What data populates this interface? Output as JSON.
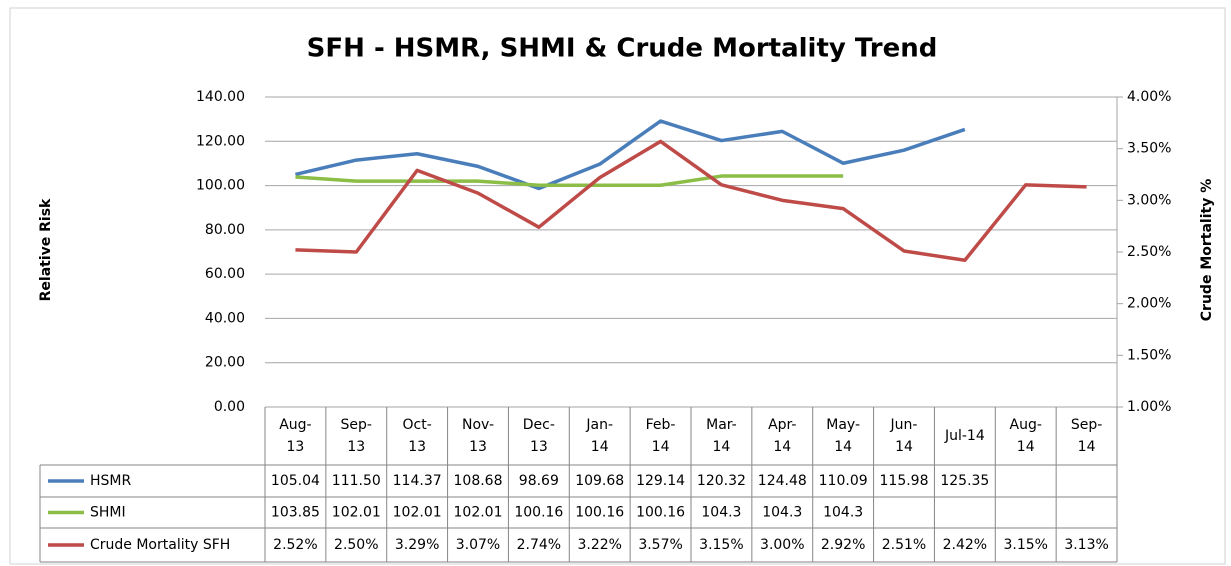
{
  "chart_data": {
    "type": "line",
    "title": "SFH - HSMR, SHMI & Crude Mortality Trend",
    "y_label": "Relative Risk",
    "y2_label": "Crude Mortality %",
    "categories": [
      "Aug-13",
      "Sep-13",
      "Oct-13",
      "Nov-13",
      "Dec-13",
      "Jan-14",
      "Feb-14",
      "Mar-14",
      "Apr-14",
      "May-14",
      "Jun-14",
      "Jul-14",
      "Aug-14",
      "Sep-14"
    ],
    "ylim": [
      0,
      140
    ],
    "yticks": [
      {
        "value": 0,
        "label": "0.00"
      },
      {
        "value": 20,
        "label": "20.00"
      },
      {
        "value": 40,
        "label": "40.00"
      },
      {
        "value": 60,
        "label": "60.00"
      },
      {
        "value": 80,
        "label": "80.00"
      },
      {
        "value": 100,
        "label": "100.00"
      },
      {
        "value": 120,
        "label": "120.00"
      },
      {
        "value": 140,
        "label": "140.00"
      }
    ],
    "y2lim": [
      1,
      4
    ],
    "y2ticks": [
      {
        "value": 1,
        "label": "1.00%"
      },
      {
        "value": 1.5,
        "label": "1.50%"
      },
      {
        "value": 2,
        "label": "2.00%"
      },
      {
        "value": 2.5,
        "label": "2.50%"
      },
      {
        "value": 3,
        "label": "3.00%"
      },
      {
        "value": 3.5,
        "label": "3.50%"
      },
      {
        "value": 4,
        "label": "4.00%"
      }
    ],
    "grid": true,
    "series": [
      {
        "name": "HSMR",
        "color": "#4a7ebb",
        "values": [
          105.04,
          111.5,
          114.37,
          108.68,
          98.69,
          109.68,
          129.14,
          120.32,
          124.48,
          110.09,
          115.98,
          125.35,
          null,
          null
        ],
        "value_labels": [
          "105.04",
          "111.50",
          "114.37",
          "108.68",
          "98.69",
          "109.68",
          "129.14",
          "120.32",
          "124.48",
          "110.09",
          "115.98",
          "125.35",
          null,
          null
        ]
      },
      {
        "name": "SHMI",
        "color": "#8cbe47",
        "values": [
          103.85,
          102.01,
          102.01,
          102.01,
          100.16,
          100.16,
          100.16,
          104.3,
          104.3,
          104.3,
          null,
          null,
          null,
          null
        ],
        "value_labels": [
          "103.85",
          "102.01",
          "102.01",
          "102.01",
          "100.16",
          "100.16",
          "100.16",
          "104.3",
          "104.3",
          "104.3",
          null,
          null,
          null,
          null
        ]
      },
      {
        "name": "Crude Mortality SFH",
        "color": "#be4b48",
        "axis": "y2",
        "values": [
          2.52,
          2.5,
          3.29,
          3.07,
          2.74,
          3.22,
          3.57,
          3.15,
          3.0,
          2.92,
          2.51,
          2.42,
          3.15,
          3.13
        ],
        "value_labels": [
          "2.52%",
          "2.50%",
          "3.29%",
          "3.07%",
          "2.74%",
          "3.22%",
          "3.57%",
          "3.15%",
          "3.00%",
          "2.92%",
          "2.51%",
          "2.42%",
          "3.15%",
          "3.13%"
        ]
      }
    ]
  }
}
